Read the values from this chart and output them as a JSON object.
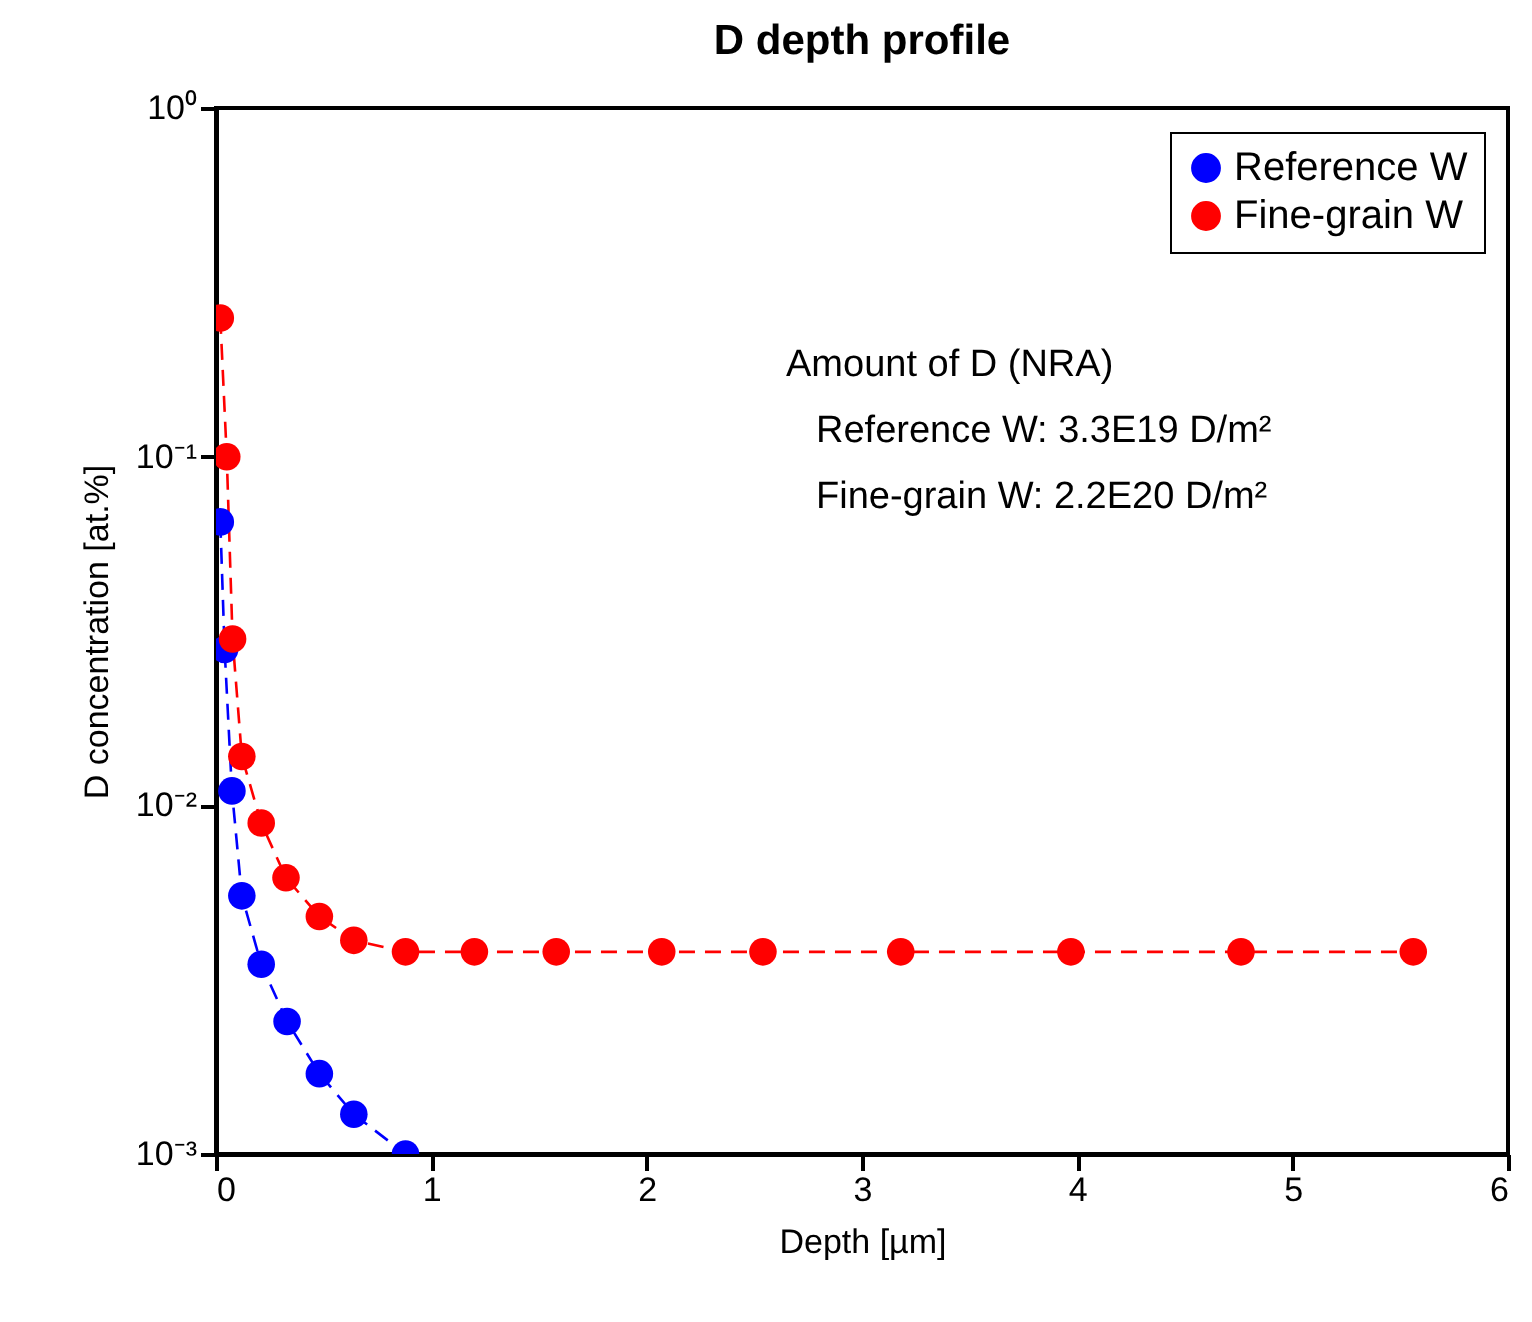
{
  "chart_data": {
    "type": "line",
    "title": "D depth profile",
    "xlabel": "Depth [µm]",
    "ylabel": "D concentration [at.%]",
    "series": [
      {
        "name": "Reference W",
        "color": "#0000ff",
        "x": [
          0.02,
          0.04,
          0.074,
          0.12,
          0.21,
          0.33,
          0.48,
          0.64,
          0.88
        ],
        "values": [
          0.065,
          0.028,
          0.011,
          0.0055,
          0.0035,
          0.0024,
          0.0017,
          0.0013,
          0.001
        ]
      },
      {
        "name": "Fine-grain W",
        "color": "#ff0000",
        "x": [
          0.02,
          0.05,
          0.077,
          0.12,
          0.21,
          0.325,
          0.48,
          0.64,
          0.88,
          1.2,
          1.58,
          2.07,
          2.54,
          3.18,
          3.97,
          4.76,
          5.56
        ],
        "values": [
          0.25,
          0.1,
          0.03,
          0.0138,
          0.0089,
          0.0062,
          0.0048,
          0.0041,
          0.0038,
          0.0038,
          0.0038,
          0.0038,
          0.0038,
          0.0038,
          0.0038,
          0.0038,
          0.0038
        ]
      }
    ],
    "xlim": [
      0,
      6
    ],
    "xticks": [
      0,
      1,
      2,
      3,
      4,
      5,
      6
    ],
    "ylim": [
      0.001,
      1
    ],
    "yticks": [
      {
        "value": 0.001,
        "label": "10⁻³"
      },
      {
        "value": 0.01,
        "label": "10⁻²"
      },
      {
        "value": 0.1,
        "label": "10⁻¹"
      },
      {
        "value": 1,
        "label": "10⁰"
      }
    ],
    "log": "y",
    "grid": false,
    "legend": "top right",
    "marker": "circle",
    "line_style": "dashed",
    "annotations": [
      "Amount of D (NRA)",
      "Reference W: 3.3E19 D/m²",
      "Fine-grain W: 2.2E20 D/m²"
    ]
  }
}
